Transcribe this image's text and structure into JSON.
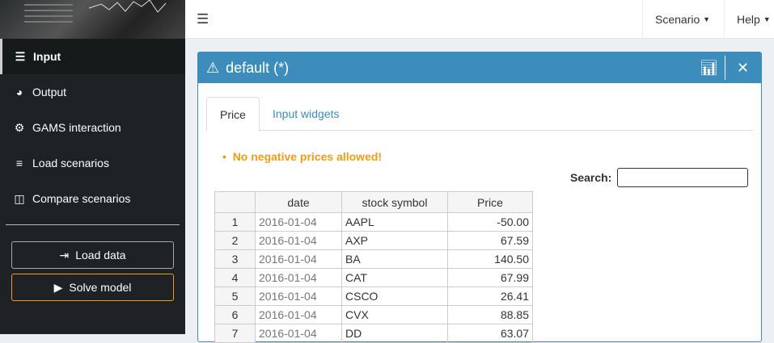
{
  "sidebar": {
    "items": [
      {
        "label": "Input",
        "icon": "sliders-icon"
      },
      {
        "label": "Output",
        "icon": "pie-chart-icon"
      },
      {
        "label": "GAMS interaction",
        "icon": "gear-icon"
      },
      {
        "label": "Load scenarios",
        "icon": "database-icon"
      },
      {
        "label": "Compare scenarios",
        "icon": "columns-icon"
      }
    ],
    "load_data": "Load data",
    "solve_model": "Solve model"
  },
  "topbar": {
    "scenario": "Scenario",
    "help": "Help"
  },
  "box": {
    "title": "default (*)",
    "tabs": [
      "Price",
      "Input widgets"
    ],
    "error": "No negative prices allowed!",
    "search_label": "Search:",
    "search_value": ""
  },
  "table": {
    "columns": [
      "",
      "date",
      "stock symbol",
      "Price"
    ],
    "rows": [
      [
        "1",
        "2016-01-04",
        "AAPL",
        "-50.00"
      ],
      [
        "2",
        "2016-01-04",
        "AXP",
        "67.59"
      ],
      [
        "3",
        "2016-01-04",
        "BA",
        "140.50"
      ],
      [
        "4",
        "2016-01-04",
        "CAT",
        "67.99"
      ],
      [
        "5",
        "2016-01-04",
        "CSCO",
        "26.41"
      ],
      [
        "6",
        "2016-01-04",
        "CVX",
        "88.85"
      ],
      [
        "7",
        "2016-01-04",
        "DD",
        "63.07"
      ]
    ]
  },
  "colors": {
    "primary": "#3c8dbc",
    "warning": "#f39c12",
    "sidebar": "#1e2224"
  }
}
